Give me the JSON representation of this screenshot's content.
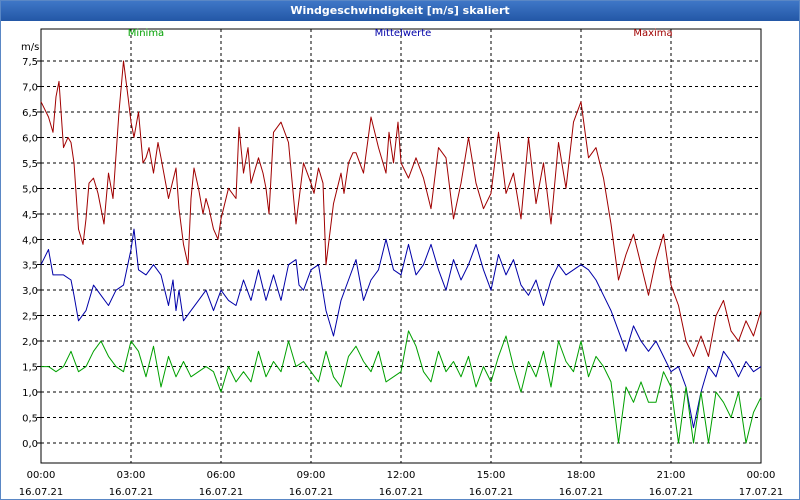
{
  "window": {
    "title": "Windgeschwindigkeit [m/s] skaliert"
  },
  "colors": {
    "minima": "#00a000",
    "mittel": "#0000a8",
    "maxima": "#a00000",
    "grid": "#000000"
  },
  "chart_data": {
    "type": "line",
    "title": "Windgeschwindigkeit [m/s] skaliert",
    "ylabel": "m/s",
    "xlabel": "",
    "ylim": [
      0,
      8
    ],
    "xlim": [
      0,
      24
    ],
    "yticks": [
      0,
      0.5,
      1,
      1.5,
      2,
      2.5,
      3,
      3.5,
      4,
      4.5,
      5,
      5.5,
      6,
      6.5,
      7,
      7.5
    ],
    "ytick_labels": [
      "0,0",
      "0,5",
      "1,0",
      "1,5",
      "2,0",
      "2,5",
      "3,0",
      "3,5",
      "4,0",
      "4,5",
      "5,0",
      "5,5",
      "6,0",
      "6,5",
      "7,0",
      "7,5"
    ],
    "xticks": [
      0,
      3,
      6,
      9,
      12,
      15,
      18,
      21,
      24
    ],
    "xtick_times": [
      "00:00",
      "03:00",
      "06:00",
      "09:00",
      "12:00",
      "15:00",
      "18:00",
      "21:00",
      "00:00"
    ],
    "xtick_dates": [
      "16.07.21",
      "16.07.21",
      "16.07.21",
      "16.07.21",
      "16.07.21",
      "16.07.21",
      "16.07.21",
      "16.07.21",
      "17.07.21"
    ],
    "grid": true,
    "series": [
      {
        "name": "Maxima",
        "key": "maxima",
        "x": [
          0,
          0.25,
          0.4,
          0.5,
          0.6,
          0.75,
          0.9,
          1.0,
          1.1,
          1.25,
          1.4,
          1.5,
          1.6,
          1.75,
          1.9,
          2.1,
          2.25,
          2.4,
          2.6,
          2.75,
          2.9,
          3.0,
          3.1,
          3.25,
          3.4,
          3.5,
          3.6,
          3.75,
          3.9,
          4.0,
          4.25,
          4.5,
          4.6,
          4.75,
          4.9,
          5.0,
          5.1,
          5.25,
          5.4,
          5.5,
          5.6,
          5.75,
          5.9,
          6.0,
          6.25,
          6.5,
          6.6,
          6.75,
          6.9,
          7.0,
          7.25,
          7.4,
          7.5,
          7.6,
          7.75,
          8.0,
          8.25,
          8.5,
          8.75,
          9.0,
          9.1,
          9.25,
          9.4,
          9.5,
          9.75,
          10.0,
          10.1,
          10.25,
          10.4,
          10.5,
          10.75,
          11.0,
          11.25,
          11.5,
          11.6,
          11.75,
          11.9,
          12.0,
          12.25,
          12.5,
          12.75,
          13.0,
          13.25,
          13.5,
          13.75,
          14.0,
          14.25,
          14.5,
          14.75,
          15.0,
          15.25,
          15.5,
          15.75,
          16.0,
          16.25,
          16.5,
          16.75,
          17.0,
          17.25,
          17.5,
          17.75,
          18.0,
          18.25,
          18.5,
          18.75,
          19.0,
          19.25,
          19.5,
          19.75,
          20.0,
          20.25,
          20.5,
          20.75,
          21.0,
          21.25,
          21.5,
          21.75,
          22.0,
          22.25,
          22.5,
          22.75,
          23.0,
          23.25,
          23.5,
          23.75,
          24.0
        ],
        "y": [
          6.7,
          6.4,
          6.1,
          6.8,
          7.1,
          5.8,
          6.0,
          5.9,
          5.5,
          4.2,
          3.9,
          4.4,
          5.1,
          5.2,
          4.9,
          4.3,
          5.3,
          4.8,
          6.5,
          7.5,
          6.8,
          6.3,
          6.0,
          6.5,
          5.5,
          5.6,
          5.8,
          5.3,
          5.9,
          5.6,
          4.8,
          5.4,
          4.6,
          3.9,
          3.5,
          4.8,
          5.4,
          5.0,
          4.5,
          4.8,
          4.6,
          4.2,
          4.0,
          4.4,
          5.0,
          4.8,
          6.2,
          5.3,
          5.8,
          5.1,
          5.6,
          5.3,
          5.0,
          4.5,
          6.1,
          6.3,
          5.9,
          4.3,
          5.5,
          5.1,
          4.9,
          5.4,
          5.1,
          3.5,
          4.7,
          5.3,
          4.9,
          5.5,
          5.7,
          5.7,
          5.3,
          6.4,
          5.8,
          5.3,
          6.1,
          5.5,
          6.3,
          5.5,
          5.2,
          5.6,
          5.2,
          4.6,
          5.8,
          5.6,
          4.4,
          5.1,
          6.0,
          5.1,
          4.6,
          4.9,
          6.1,
          4.9,
          5.3,
          4.4,
          6.0,
          4.7,
          5.5,
          4.3,
          5.9,
          5.0,
          6.3,
          6.7,
          5.6,
          5.8,
          5.2,
          4.3,
          3.2,
          3.7,
          4.1,
          3.5,
          2.9,
          3.6,
          4.1,
          3.1,
          2.7,
          2.0,
          1.7,
          2.1,
          1.7,
          2.5,
          2.8,
          2.2,
          2.0,
          2.4,
          2.1,
          2.6
        ]
      },
      {
        "name": "Mittelwerte",
        "key": "mittel",
        "x": [
          0,
          0.25,
          0.4,
          0.5,
          0.75,
          1.0,
          1.1,
          1.25,
          1.5,
          1.75,
          2.0,
          2.25,
          2.5,
          2.75,
          3.0,
          3.1,
          3.25,
          3.5,
          3.75,
          4.0,
          4.25,
          4.4,
          4.5,
          4.6,
          4.75,
          5.0,
          5.25,
          5.5,
          5.75,
          6.0,
          6.25,
          6.5,
          6.75,
          7.0,
          7.25,
          7.5,
          7.75,
          8.0,
          8.25,
          8.5,
          8.6,
          8.75,
          9.0,
          9.25,
          9.5,
          9.75,
          10.0,
          10.25,
          10.5,
          10.75,
          11.0,
          11.25,
          11.5,
          11.75,
          12.0,
          12.25,
          12.5,
          12.75,
          13.0,
          13.25,
          13.5,
          13.75,
          14.0,
          14.25,
          14.5,
          14.75,
          15.0,
          15.25,
          15.5,
          15.75,
          16.0,
          16.25,
          16.5,
          16.75,
          17.0,
          17.25,
          17.5,
          17.75,
          18.0,
          18.25,
          18.5,
          18.75,
          19.0,
          19.25,
          19.5,
          19.75,
          20.0,
          20.25,
          20.5,
          20.75,
          21.0,
          21.25,
          21.5,
          21.75,
          22.0,
          22.25,
          22.5,
          22.75,
          23.0,
          23.25,
          23.5,
          23.75,
          24.0
        ],
        "y": [
          3.5,
          3.8,
          3.3,
          3.3,
          3.3,
          3.2,
          2.9,
          2.4,
          2.6,
          3.1,
          2.9,
          2.7,
          3.0,
          3.1,
          3.8,
          4.2,
          3.4,
          3.3,
          3.5,
          3.3,
          2.7,
          3.2,
          2.6,
          3.0,
          2.4,
          2.6,
          2.8,
          3.0,
          2.6,
          3.0,
          2.8,
          2.7,
          3.2,
          2.8,
          3.4,
          2.8,
          3.3,
          2.8,
          3.5,
          3.6,
          3.1,
          3.0,
          3.4,
          3.5,
          2.6,
          2.1,
          2.8,
          3.2,
          3.6,
          2.8,
          3.2,
          3.4,
          4.0,
          3.4,
          3.3,
          3.9,
          3.3,
          3.5,
          3.9,
          3.4,
          3.0,
          3.6,
          3.2,
          3.5,
          3.9,
          3.4,
          3.0,
          3.7,
          3.3,
          3.6,
          3.1,
          2.9,
          3.2,
          2.7,
          3.2,
          3.5,
          3.3,
          3.4,
          3.5,
          3.4,
          3.2,
          2.9,
          2.6,
          2.2,
          1.8,
          2.3,
          2.0,
          1.8,
          2.0,
          1.7,
          1.4,
          1.5,
          1.1,
          0.3,
          1.0,
          1.5,
          1.3,
          1.8,
          1.6,
          1.3,
          1.6,
          1.4,
          1.5
        ]
      },
      {
        "name": "Minima",
        "key": "minima",
        "x": [
          0,
          0.25,
          0.5,
          0.75,
          1.0,
          1.25,
          1.5,
          1.75,
          2.0,
          2.25,
          2.5,
          2.75,
          3.0,
          3.25,
          3.5,
          3.75,
          4.0,
          4.25,
          4.5,
          4.75,
          5.0,
          5.25,
          5.5,
          5.75,
          6.0,
          6.25,
          6.5,
          6.75,
          7.0,
          7.25,
          7.5,
          7.75,
          8.0,
          8.25,
          8.5,
          8.75,
          9.0,
          9.25,
          9.5,
          9.75,
          10.0,
          10.25,
          10.5,
          10.75,
          11.0,
          11.25,
          11.5,
          11.75,
          12.0,
          12.25,
          12.5,
          12.75,
          13.0,
          13.25,
          13.5,
          13.75,
          14.0,
          14.25,
          14.5,
          14.75,
          15.0,
          15.25,
          15.5,
          15.75,
          16.0,
          16.25,
          16.5,
          16.75,
          17.0,
          17.25,
          17.5,
          17.75,
          18.0,
          18.25,
          18.5,
          18.75,
          19.0,
          19.25,
          19.5,
          19.75,
          20.0,
          20.25,
          20.5,
          20.75,
          21.0,
          21.25,
          21.5,
          21.75,
          22.0,
          22.25,
          22.5,
          22.75,
          23.0,
          23.25,
          23.5,
          23.75,
          24.0
        ],
        "y": [
          1.5,
          1.5,
          1.4,
          1.5,
          1.8,
          1.4,
          1.5,
          1.8,
          2.0,
          1.7,
          1.5,
          1.4,
          2.0,
          1.8,
          1.3,
          1.9,
          1.1,
          1.7,
          1.3,
          1.6,
          1.3,
          1.4,
          1.5,
          1.4,
          1.0,
          1.5,
          1.2,
          1.4,
          1.2,
          1.8,
          1.3,
          1.6,
          1.4,
          2.0,
          1.5,
          1.6,
          1.4,
          1.2,
          1.8,
          1.3,
          1.1,
          1.7,
          1.9,
          1.6,
          1.4,
          1.8,
          1.2,
          1.3,
          1.4,
          2.2,
          1.9,
          1.4,
          1.2,
          1.8,
          1.4,
          1.6,
          1.3,
          1.7,
          1.1,
          1.5,
          1.2,
          1.7,
          2.1,
          1.5,
          1.0,
          1.6,
          1.3,
          1.8,
          1.1,
          2.0,
          1.6,
          1.4,
          2.0,
          1.3,
          1.7,
          1.5,
          1.2,
          0.0,
          1.1,
          0.8,
          1.2,
          0.8,
          0.8,
          1.4,
          1.1,
          0.0,
          1.1,
          0.0,
          1.0,
          0.0,
          1.0,
          0.8,
          0.5,
          1.0,
          0.0,
          0.6,
          0.9
        ]
      }
    ]
  }
}
